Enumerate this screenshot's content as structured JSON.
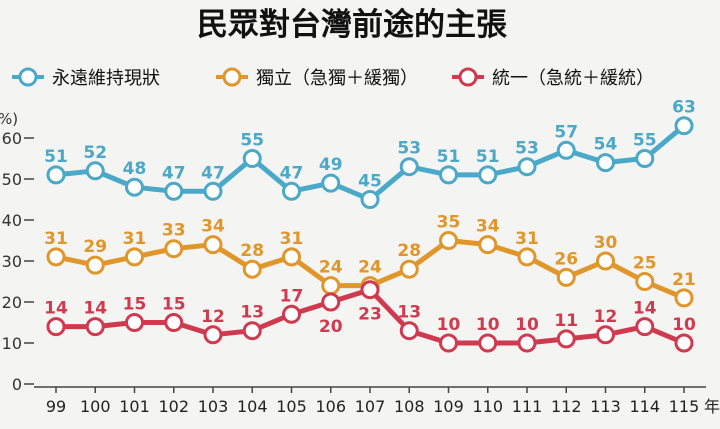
{
  "chart_data": {
    "type": "line",
    "title": "民眾對台灣前途的主張",
    "unit_label": "%)",
    "x_unit": "年",
    "x": [
      "99",
      "100",
      "101",
      "102",
      "103",
      "104",
      "105",
      "106",
      "107",
      "108",
      "109",
      "110",
      "111",
      "112",
      "113",
      "114",
      "115"
    ],
    "ylim": [
      0,
      65
    ],
    "y_ticks": [
      "0",
      "10",
      "20",
      "30",
      "40",
      "50",
      "60"
    ],
    "grid": false,
    "legend_position": "top-left",
    "series": [
      {
        "name": "永遠維持現狀",
        "color": "#4aa8c8",
        "values": [
          51,
          52,
          48,
          47,
          47,
          55,
          47,
          49,
          45,
          53,
          51,
          51,
          53,
          57,
          54,
          55,
          63
        ]
      },
      {
        "name": "獨立（急獨＋緩獨）",
        "color": "#e0962a",
        "values": [
          31,
          29,
          31,
          33,
          34,
          28,
          31,
          24,
          24,
          28,
          35,
          34,
          31,
          26,
          30,
          25,
          21
        ]
      },
      {
        "name": "統一（急統＋緩統）",
        "color": "#d03a4e",
        "values": [
          14,
          14,
          15,
          15,
          12,
          13,
          17,
          20,
          23,
          13,
          10,
          10,
          10,
          11,
          12,
          14,
          10
        ]
      }
    ]
  }
}
